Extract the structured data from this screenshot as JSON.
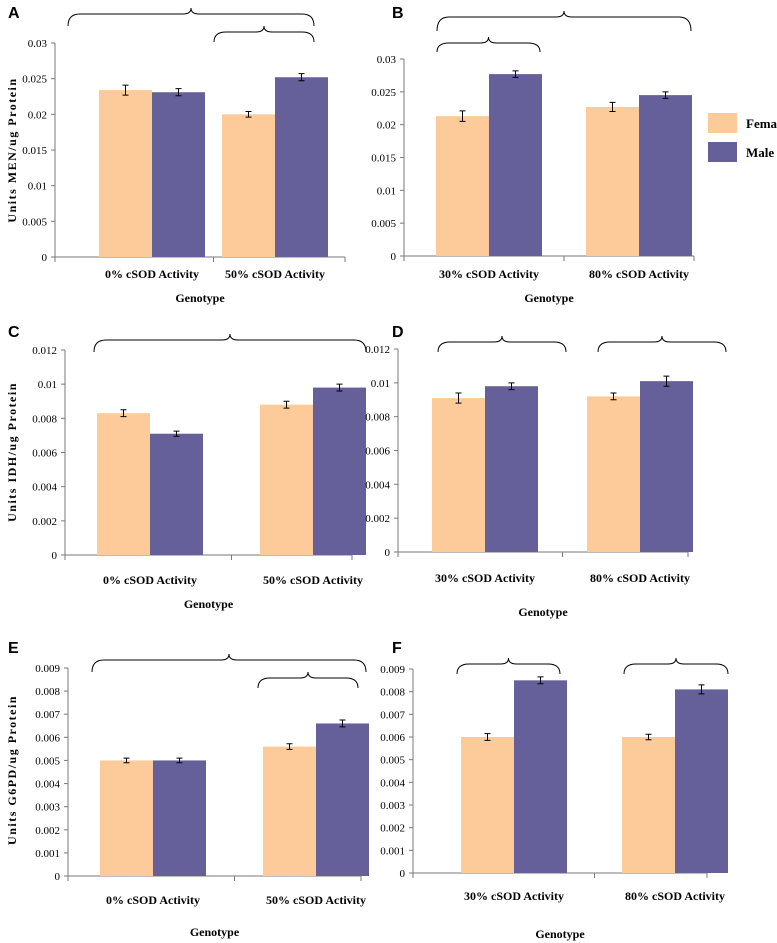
{
  "colors": {
    "female": "#FDCB99",
    "male": "#65609A"
  },
  "legend": {
    "female_label": "Female",
    "male_label": "Male"
  },
  "chart_data": [
    {
      "panel": "A",
      "type": "bar",
      "categories": [
        "0% cSOD Activity",
        "50% cSOD Activity"
      ],
      "series": [
        {
          "name": "Female",
          "values": [
            0.0234,
            0.02
          ],
          "errors": [
            0.0007,
            0.0004
          ]
        },
        {
          "name": "Male",
          "values": [
            0.0231,
            0.0252
          ],
          "errors": [
            0.0005,
            0.0005
          ]
        }
      ],
      "xlabel": "Genotype",
      "ylabel": "Units MEN/ug Protein",
      "ylim": [
        0,
        0.03
      ],
      "yticks": [
        "0",
        "0.005",
        "0.01",
        "0.015",
        "0.02",
        "0.025",
        "0.03"
      ],
      "tick_step": 0.005
    },
    {
      "panel": "B",
      "type": "bar",
      "categories": [
        "30% cSOD Activity",
        "80% cSOD Activity"
      ],
      "series": [
        {
          "name": "Female",
          "values": [
            0.0213,
            0.0227
          ],
          "errors": [
            0.0008,
            0.0007
          ]
        },
        {
          "name": "Male",
          "values": [
            0.0277,
            0.0245
          ],
          "errors": [
            0.0005,
            0.0005
          ]
        }
      ],
      "xlabel": "Genotype",
      "ylabel": "",
      "ylim": [
        0,
        0.03
      ],
      "yticks": [
        "0",
        "0.005",
        "0.01",
        "0.015",
        "0.02",
        "0.025",
        "0.03"
      ],
      "tick_step": 0.005
    },
    {
      "panel": "C",
      "type": "bar",
      "categories": [
        "0% cSOD Activity",
        "50% cSOD Activity"
      ],
      "series": [
        {
          "name": "Female",
          "values": [
            0.0083,
            0.0088
          ],
          "errors": [
            0.0002,
            0.0002
          ]
        },
        {
          "name": "Male",
          "values": [
            0.0071,
            0.0098
          ],
          "errors": [
            0.00015,
            0.0002
          ]
        }
      ],
      "xlabel": "Genotype",
      "ylabel": "Units IDH/ug Protein",
      "ylim": [
        0,
        0.012
      ],
      "yticks": [
        "0",
        "0.002",
        "0.004",
        "0.006",
        "0.008",
        "0.01",
        "0.012"
      ],
      "tick_step": 0.002
    },
    {
      "panel": "D",
      "type": "bar",
      "categories": [
        "30% cSOD Activity",
        "80% cSOD Activity"
      ],
      "series": [
        {
          "name": "Female",
          "values": [
            0.0091,
            0.0092
          ],
          "errors": [
            0.0003,
            0.0002
          ]
        },
        {
          "name": "Male",
          "values": [
            0.0098,
            0.0101
          ],
          "errors": [
            0.0002,
            0.0003
          ]
        }
      ],
      "xlabel": "Genotype",
      "ylabel": "",
      "ylim": [
        0,
        0.012
      ],
      "yticks": [
        "0",
        "0.002",
        "0.004",
        "0.006",
        "0.008",
        "0.01",
        "0.012"
      ],
      "tick_step": 0.002
    },
    {
      "panel": "E",
      "type": "bar",
      "categories": [
        "0% cSOD Activity",
        "50% cSOD Activity"
      ],
      "series": [
        {
          "name": "Female",
          "values": [
            0.005,
            0.0056
          ],
          "errors": [
            0.0001,
            0.00012
          ]
        },
        {
          "name": "Male",
          "values": [
            0.005,
            0.0066
          ],
          "errors": [
            0.0001,
            0.00015
          ]
        }
      ],
      "xlabel": "Genotype",
      "ylabel": "Units G6PD/ug Protein",
      "ylim": [
        0,
        0.009
      ],
      "yticks": [
        "0",
        "0.001",
        "0.002",
        "0.003",
        "0.004",
        "0.005",
        "0.006",
        "0.007",
        "0.008",
        "0.009"
      ],
      "tick_step": 0.001
    },
    {
      "panel": "F",
      "type": "bar",
      "categories": [
        "30% cSOD Activity",
        "80% cSOD Activity"
      ],
      "series": [
        {
          "name": "Female",
          "values": [
            0.006,
            0.006
          ],
          "errors": [
            0.00015,
            0.00012
          ]
        },
        {
          "name": "Male",
          "values": [
            0.0085,
            0.0081
          ],
          "errors": [
            0.00015,
            0.0002
          ]
        }
      ],
      "xlabel": "Genotype",
      "ylabel": "",
      "ylim": [
        0,
        0.009
      ],
      "yticks": [
        "0",
        "0.001",
        "0.002",
        "0.003",
        "0.004",
        "0.005",
        "0.006",
        "0.007",
        "0.008",
        "0.009"
      ],
      "tick_step": 0.001
    }
  ]
}
